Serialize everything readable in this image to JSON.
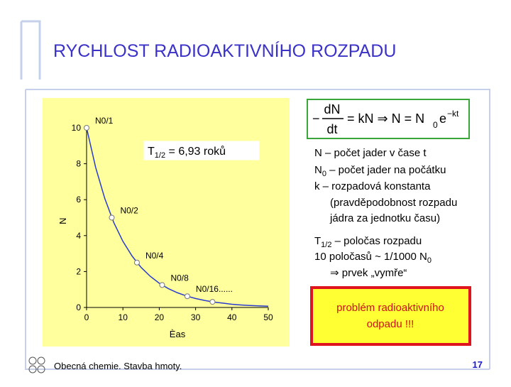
{
  "slide": {
    "title": "RYCHLOST RADIOAKTIVNÍHO ROZPADU",
    "formula": {
      "minus": "−",
      "num": "dN",
      "den": "dt",
      "mid": "= kN ⇒ N = N",
      "sub": "0",
      "e": "e",
      "exp": "−kt"
    },
    "lines": [
      [
        "N – počet jader v čase t"
      ],
      [
        "N",
        {
          "sub": "0"
        },
        " – počet jader na počátku"
      ],
      [
        "k – rozpadová konstanta"
      ],
      [
        "(pravděpodobnost rozpadu"
      ],
      [
        "jádra za jednotku času)"
      ],
      [
        "T",
        {
          "sub": "1/2"
        },
        " – poločas rozpadu"
      ],
      [
        "10 poločasů ~ 1/1000 N",
        {
          "sub": "0"
        }
      ],
      [
        "⇒ prvek „vymře“"
      ]
    ],
    "callout": [
      "problém radioaktivního",
      "odpadu !!!"
    ],
    "footer": "Obecná chemie. Stavba hmoty.",
    "page": "17"
  },
  "chart_data": {
    "type": "line",
    "x_label": "Èas",
    "y_label": "N",
    "annotation": {
      "base": "T",
      "sub": "1/2",
      "text": " = 6,93 roků"
    },
    "xlim": [
      0,
      50
    ],
    "ylim": [
      0,
      10
    ],
    "xticks": [
      0,
      10,
      20,
      30,
      40,
      50
    ],
    "yticks": [
      0,
      2,
      4,
      6,
      8,
      10
    ],
    "series": [
      {
        "color": "#2a3ccf",
        "style": "line",
        "x": [
          0,
          2.5,
          5,
          7.5,
          10,
          12.5,
          15,
          17.5,
          20,
          22.5,
          25,
          27.5,
          30,
          32.5,
          35,
          37.5,
          40,
          42.5,
          45,
          47.5,
          50
        ],
        "values": [
          10,
          7.79,
          6.07,
          4.72,
          3.68,
          2.87,
          2.23,
          1.74,
          1.35,
          1.05,
          0.82,
          0.64,
          0.5,
          0.39,
          0.3,
          0.24,
          0.18,
          0.14,
          0.11,
          0.09,
          0.07
        ]
      },
      {
        "color": "#ffffff",
        "style": "markers",
        "x": [
          0,
          6.93,
          13.86,
          20.79,
          27.72,
          34.65
        ],
        "values": [
          10,
          5,
          2.5,
          1.25,
          0.625,
          0.3125
        ],
        "labels": [
          "N0/1",
          "N0/2",
          "N0/4",
          "N0/8",
          "N0/16......",
          null
        ]
      }
    ]
  }
}
